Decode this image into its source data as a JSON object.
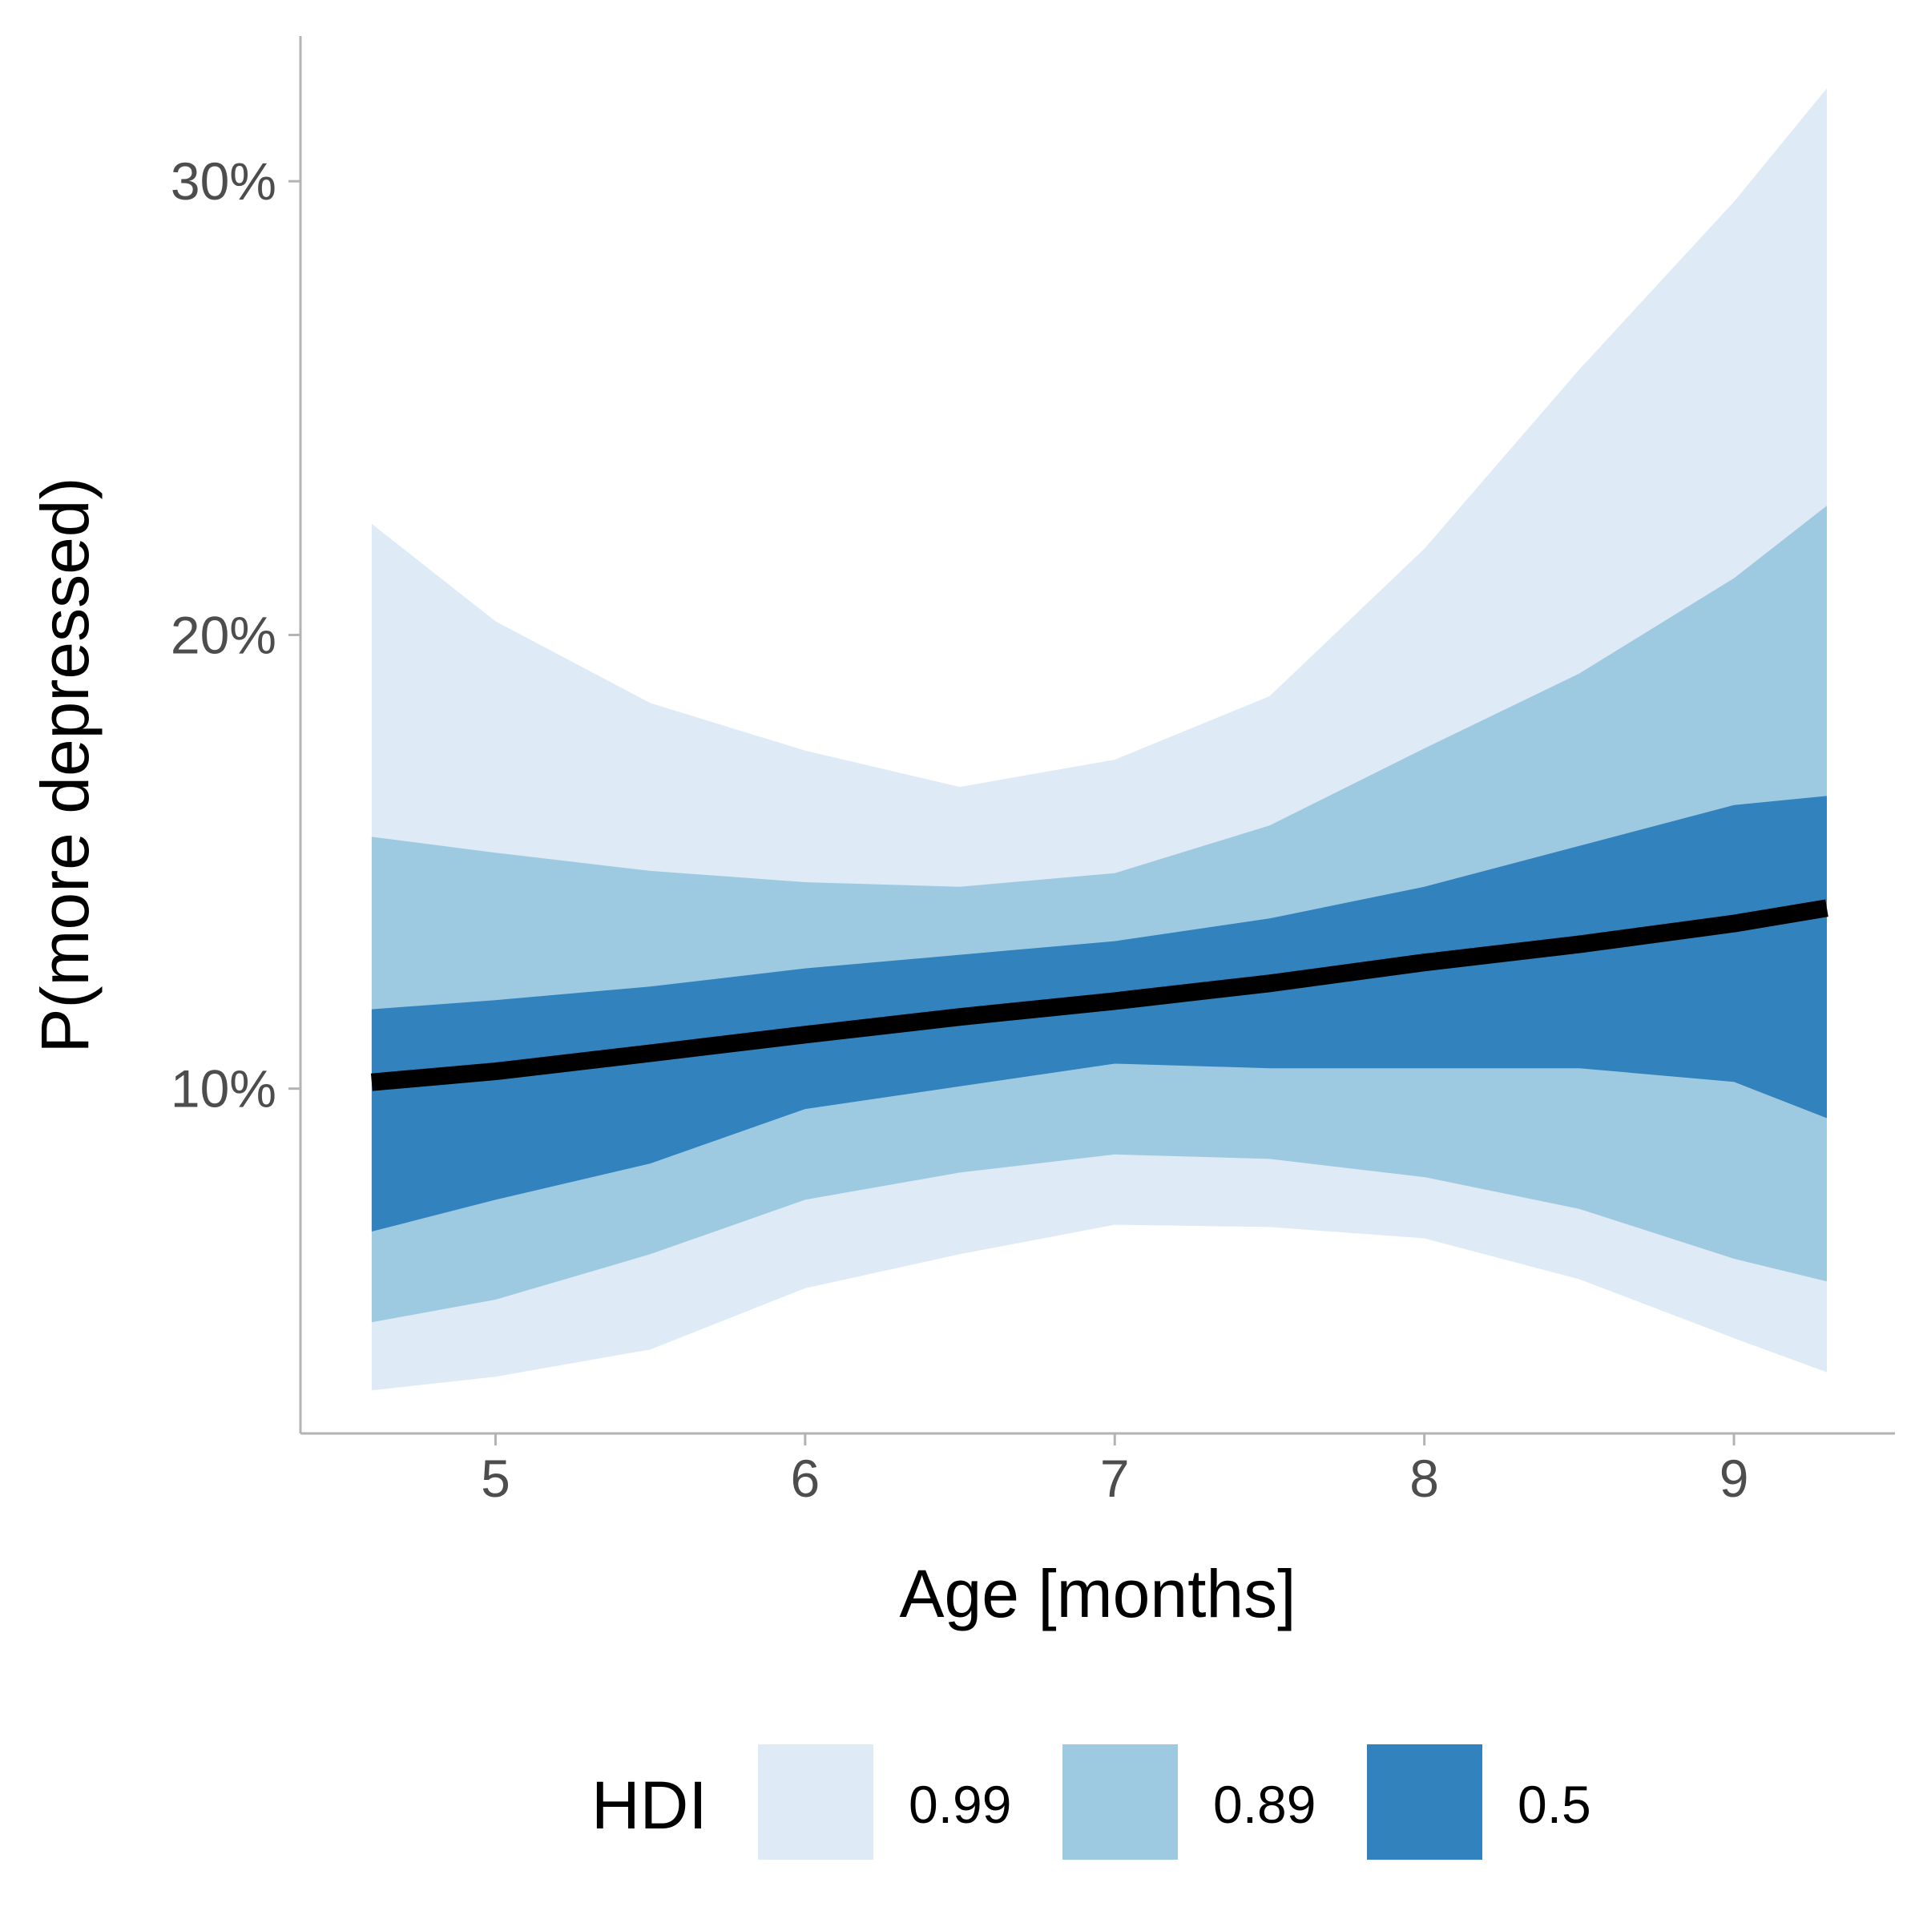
{
  "chart_data": {
    "type": "area",
    "xlabel": "Age [months]",
    "ylabel": "P(more depressed)",
    "xlim": [
      4.37,
      9.52
    ],
    "ylim": [
      0.024,
      0.332
    ],
    "x_ticks": [
      5,
      6,
      7,
      8,
      9
    ],
    "x_tick_labels": [
      "5",
      "6",
      "7",
      "8",
      "9"
    ],
    "y_ticks": [
      0.1,
      0.2,
      0.3
    ],
    "y_tick_labels": [
      "10%",
      "20%",
      "30%"
    ],
    "grid": false,
    "legend": {
      "title": "HDI",
      "position": "bottom",
      "items": [
        {
          "label": "0.99",
          "color": "#deebf7"
        },
        {
          "label": "0.89",
          "color": "#9ecae1"
        },
        {
          "label": "0.5",
          "color": "#3182bd"
        }
      ]
    },
    "x": [
      4.6,
      5.0,
      5.5,
      6.0,
      6.5,
      7.0,
      7.5,
      8.0,
      8.5,
      9.0,
      9.3
    ],
    "series": [
      {
        "level": "0.99",
        "color": "#deebf7",
        "lower": [
          0.0335,
          0.0365,
          0.0425,
          0.056,
          0.0635,
          0.07,
          0.0695,
          0.067,
          0.058,
          0.045,
          0.0375
        ],
        "upper": [
          0.2245,
          0.203,
          0.185,
          0.1745,
          0.1665,
          0.1725,
          0.1865,
          0.219,
          0.2585,
          0.2955,
          0.3205
        ]
      },
      {
        "level": "0.89",
        "color": "#9ecae1",
        "lower": [
          0.0485,
          0.0535,
          0.0635,
          0.0755,
          0.0815,
          0.0855,
          0.0845,
          0.0805,
          0.0735,
          0.0625,
          0.0575
        ]
      },
      {
        "level": "0.89",
        "color": "#9ecae1",
        "upper": [
          0.1555,
          0.152,
          0.148,
          0.1455,
          0.1445,
          0.1475,
          0.158,
          0.175,
          0.1915,
          0.2125,
          0.2285
        ]
      },
      {
        "level": "0.5",
        "color": "#3182bd",
        "lower": [
          0.0685,
          0.0755,
          0.0835,
          0.0955,
          0.1005,
          0.1055,
          0.1045,
          0.1045,
          0.1045,
          0.1015,
          0.0935
        ],
        "upper": [
          0.1175,
          0.1195,
          0.1225,
          0.1265,
          0.1295,
          0.1325,
          0.1375,
          0.1445,
          0.1535,
          0.1625,
          0.1645
        ]
      },
      {
        "name": "",
        "color": "#000000",
        "median": [
          0.1014,
          0.1038,
          0.1078,
          0.1119,
          0.1158,
          0.1193,
          0.1232,
          0.1278,
          0.1318,
          0.1364,
          0.1398
        ]
      }
    ]
  }
}
